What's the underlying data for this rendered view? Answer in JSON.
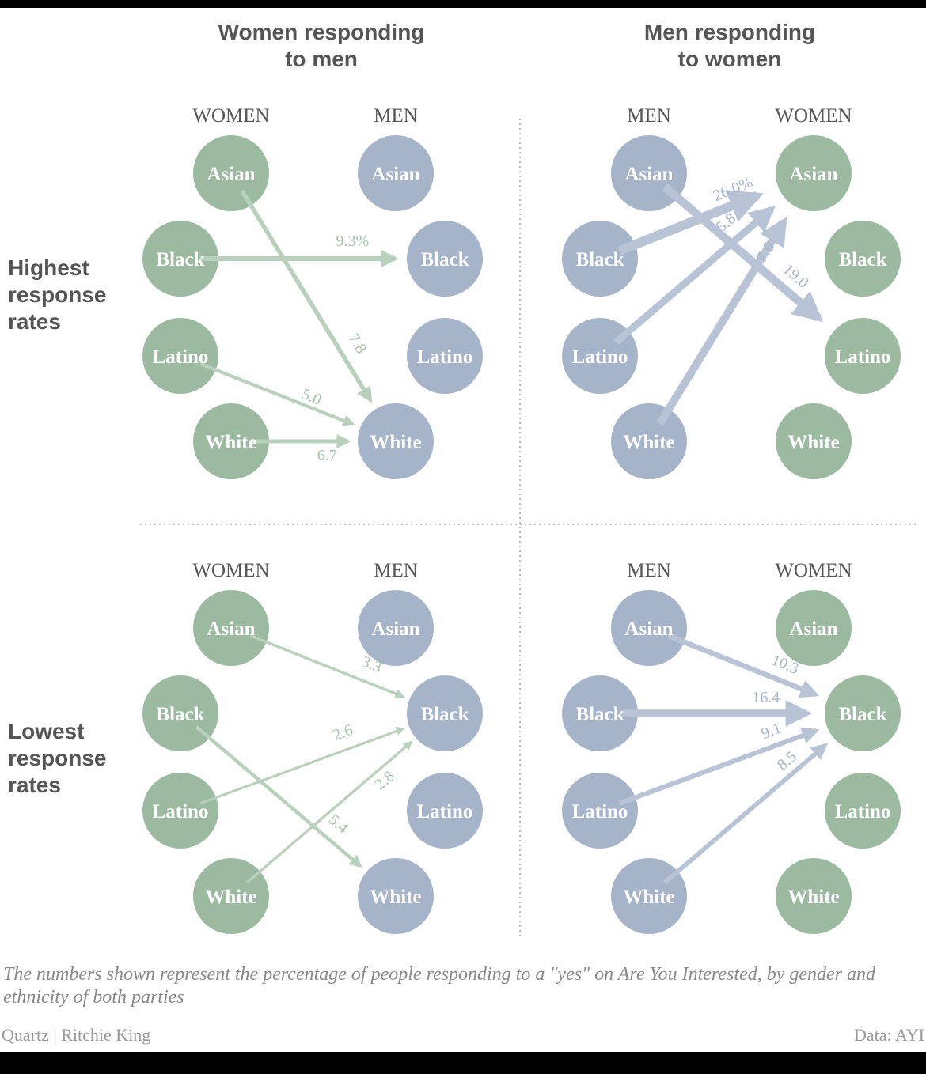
{
  "titles": {
    "women_col": "Women responding\nto men",
    "men_col": "Men responding\nto women",
    "highest_row": "Highest\nresponse\nrates",
    "lowest_row": "Lowest\nresponse\nrates"
  },
  "side_headers": {
    "women": "WOMEN",
    "men": "MEN"
  },
  "ethnicities": [
    "Asian",
    "Black",
    "Latino",
    "White"
  ],
  "colors": {
    "women": "#9bbaa0",
    "men": "#a6b4c9",
    "women_arrow": "#b9d0bc",
    "men_arrow": "#b8c3d6",
    "divider": "#bbbbbb"
  },
  "chart_data": [
    {
      "type": "flow",
      "responders": "women",
      "group": "highest",
      "links": [
        {
          "from": "Black",
          "to": "Black",
          "value": "9.3%"
        },
        {
          "from": "Asian",
          "to": "White",
          "value": "7.8"
        },
        {
          "from": "Latino",
          "to": "White",
          "value": "5.0"
        },
        {
          "from": "White",
          "to": "White",
          "value": "6.7"
        }
      ]
    },
    {
      "type": "flow",
      "responders": "men",
      "group": "highest",
      "links": [
        {
          "from": "Black",
          "to": "Asian",
          "value": "26.0%"
        },
        {
          "from": "Latino",
          "to": "Asian",
          "value": "15.8"
        },
        {
          "from": "White",
          "to": "Asian",
          "value": "17.6"
        },
        {
          "from": "Asian",
          "to": "Latino",
          "value": "19.0"
        }
      ]
    },
    {
      "type": "flow",
      "responders": "women",
      "group": "lowest",
      "links": [
        {
          "from": "Asian",
          "to": "Black",
          "value": "3.3"
        },
        {
          "from": "Latino",
          "to": "Black",
          "value": "2.6"
        },
        {
          "from": "White",
          "to": "Black",
          "value": "2.8"
        },
        {
          "from": "Black",
          "to": "White",
          "value": "5.4"
        }
      ]
    },
    {
      "type": "flow",
      "responders": "men",
      "group": "lowest",
      "links": [
        {
          "from": "Asian",
          "to": "Black",
          "value": "10.3"
        },
        {
          "from": "Black",
          "to": "Black",
          "value": "16.4"
        },
        {
          "from": "Latino",
          "to": "Black",
          "value": "9.1"
        },
        {
          "from": "White",
          "to": "Black",
          "value": "8.5"
        }
      ]
    }
  ],
  "note": "The numbers shown represent the percentage of people responding to a \"yes\" on Are You Interested, by gender and ethnicity of both parties",
  "credit_left": "Quartz | Ritchie King",
  "credit_right": "Data: AYI"
}
